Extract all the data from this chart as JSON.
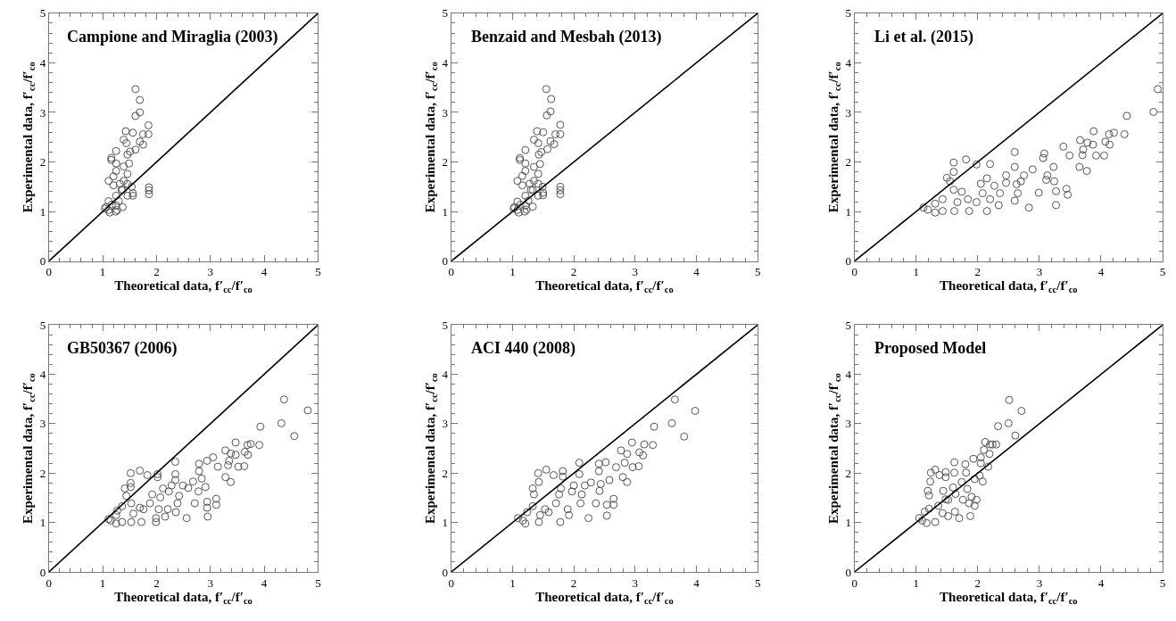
{
  "chart_data": [
    {
      "type": "scatter",
      "title": "Campione and Miraglia (2003)",
      "xlabel": "Theoretical data, f′$_{cc}$/f′$_{co}$",
      "ylabel": "Experimental data, f′$_{cc}$/f′$_{co}$",
      "xlim": [
        0,
        5
      ],
      "ylim": [
        0,
        5
      ],
      "xticks": [
        0,
        {
          "value": 0.2,
          "label": null
        },
        {
          "value": 0.4,
          "label": null
        },
        {
          "value": 0.6,
          "label": null
        },
        {
          "value": 0.8,
          "label": null
        },
        1,
        {
          "value": 1.2,
          "label": null
        },
        {
          "value": 1.4,
          "label": null
        },
        {
          "value": 1.6,
          "label": null
        },
        {
          "value": 1.8,
          "label": null
        },
        2,
        {
          "value": 2.2,
          "label": null
        },
        {
          "value": 2.4,
          "label": null
        },
        {
          "value": 2.6,
          "label": null
        },
        {
          "value": 2.8,
          "label": null
        },
        3,
        {
          "value": 3.2,
          "label": null
        },
        {
          "value": 3.4,
          "label": null
        },
        {
          "value": 3.6,
          "label": null
        },
        {
          "value": 3.8,
          "label": null
        },
        4,
        {
          "value": 4.2,
          "label": null
        },
        {
          "value": 4.4,
          "label": null
        },
        {
          "value": 4.6,
          "label": null
        },
        {
          "value": 4.8,
          "label": null
        },
        5
      ],
      "yticks": [
        0,
        {
          "value": 0.2,
          "label": null
        },
        {
          "value": 0.4,
          "label": null
        },
        {
          "value": 0.6,
          "label": null
        },
        {
          "value": 0.8,
          "label": null
        },
        1,
        {
          "value": 1.2,
          "label": null
        },
        {
          "value": 1.4,
          "label": null
        },
        {
          "value": 1.6,
          "label": null
        },
        {
          "value": 1.8,
          "label": null
        },
        2,
        {
          "value": 2.2,
          "label": null
        },
        {
          "value": 2.4,
          "label": null
        },
        {
          "value": 2.6,
          "label": null
        },
        {
          "value": 2.8,
          "label": null
        },
        3,
        {
          "value": 3.2,
          "label": null
        },
        {
          "value": 3.4,
          "label": null
        },
        {
          "value": 3.6,
          "label": null
        },
        {
          "value": 3.8,
          "label": null
        },
        4,
        {
          "value": 4.2,
          "label": null
        },
        {
          "value": 4.4,
          "label": null
        },
        {
          "value": 4.6,
          "label": null
        },
        {
          "value": 4.8,
          "label": null
        },
        5
      ],
      "marker": "circle",
      "series": [
        {
          "color": "#555555",
          "x": [
            1.61,
            1.69,
            1.69,
            1.61,
            1.85,
            1.85,
            1.75,
            1.69,
            1.75,
            1.56,
            1.43,
            1.44,
            1.39,
            1.61,
            1.51,
            1.46,
            1.25,
            1.16,
            1.16,
            1.25,
            1.25,
            1.39,
            1.46,
            1.39,
            1.2,
            1.11,
            1.2,
            1.46,
            1.35,
            1.46,
            1.56,
            1.56,
            1.3,
            1.25,
            1.11,
            1.06,
            1.04,
            1.11,
            1.13,
            1.24,
            1.27,
            1.37,
            1.37,
            1.86,
            1.86,
            1.86,
            1.25,
            1.32,
            1.17,
            1.49,
            1.54
          ],
          "values": [
            3.47,
            3.25,
            3.0,
            2.93,
            2.74,
            2.56,
            2.56,
            2.41,
            2.35,
            2.59,
            2.62,
            2.38,
            2.45,
            2.25,
            2.21,
            2.15,
            2.22,
            2.08,
            2.04,
            1.97,
            1.82,
            1.91,
            1.76,
            1.62,
            1.71,
            1.62,
            1.53,
            1.56,
            1.44,
            1.32,
            1.37,
            1.32,
            1.21,
            1.12,
            1.21,
            1.09,
            1.06,
            1.03,
            0.98,
            1.0,
            1.03,
            1.09,
            1.44,
            1.49,
            1.43,
            1.35,
            1.32,
            1.56,
            1.14,
            1.97,
            1.5
          ]
        },
        {
          "type": "line",
          "color": "#000000",
          "marker": "none",
          "x": [
            0,
            5
          ],
          "values": [
            0,
            5
          ]
        }
      ]
    },
    {
      "type": "scatter",
      "title": "Benzaid and Mesbah (2013)",
      "xlabel": "Theoretical data, f′$_{cc}$/f′$_{co}$",
      "ylabel": "Experimental data, f′$_{cc}$/f′$_{co}$",
      "xlim": [
        0,
        5
      ],
      "ylim": [
        0,
        5
      ],
      "xticks": [
        0,
        {
          "value": 0.2,
          "label": null
        },
        {
          "value": 0.4,
          "label": null
        },
        {
          "value": 0.6,
          "label": null
        },
        {
          "value": 0.8,
          "label": null
        },
        1,
        {
          "value": 1.2,
          "label": null
        },
        {
          "value": 1.4,
          "label": null
        },
        {
          "value": 1.6,
          "label": null
        },
        {
          "value": 1.8,
          "label": null
        },
        2,
        {
          "value": 2.2,
          "label": null
        },
        {
          "value": 2.4,
          "label": null
        },
        {
          "value": 2.6,
          "label": null
        },
        {
          "value": 2.8,
          "label": null
        },
        3,
        {
          "value": 3.2,
          "label": null
        },
        {
          "value": 3.4,
          "label": null
        },
        {
          "value": 3.6,
          "label": null
        },
        {
          "value": 3.8,
          "label": null
        },
        4,
        {
          "value": 4.2,
          "label": null
        },
        {
          "value": 4.4,
          "label": null
        },
        {
          "value": 4.6,
          "label": null
        },
        {
          "value": 4.8,
          "label": null
        },
        5
      ],
      "yticks": [
        0,
        {
          "value": 0.2,
          "label": null
        },
        {
          "value": 0.4,
          "label": null
        },
        {
          "value": 0.6,
          "label": null
        },
        {
          "value": 0.8,
          "label": null
        },
        1,
        {
          "value": 1.2,
          "label": null
        },
        {
          "value": 1.4,
          "label": null
        },
        {
          "value": 1.6,
          "label": null
        },
        {
          "value": 1.8,
          "label": null
        },
        2,
        {
          "value": 2.2,
          "label": null
        },
        {
          "value": 2.4,
          "label": null
        },
        {
          "value": 2.6,
          "label": null
        },
        {
          "value": 2.8,
          "label": null
        },
        3,
        {
          "value": 3.2,
          "label": null
        },
        {
          "value": 3.4,
          "label": null
        },
        {
          "value": 3.6,
          "label": null
        },
        {
          "value": 3.8,
          "label": null
        },
        4,
        {
          "value": 4.2,
          "label": null
        },
        {
          "value": 4.4,
          "label": null
        },
        {
          "value": 4.6,
          "label": null
        },
        {
          "value": 4.8,
          "label": null
        },
        5
      ],
      "marker": "circle",
      "series": [
        {
          "color": "#555555",
          "x": [
            1.55,
            1.63,
            1.62,
            1.56,
            1.78,
            1.78,
            1.7,
            1.62,
            1.68,
            1.5,
            1.4,
            1.42,
            1.35,
            1.57,
            1.47,
            1.43,
            1.21,
            1.12,
            1.12,
            1.21,
            1.21,
            1.35,
            1.42,
            1.35,
            1.16,
            1.08,
            1.16,
            1.42,
            1.3,
            1.42,
            1.5,
            1.5,
            1.26,
            1.21,
            1.08,
            1.03,
            1.02,
            1.08,
            1.1,
            1.2,
            1.23,
            1.33,
            1.33,
            1.78,
            1.78,
            1.78,
            1.21,
            1.28,
            1.13,
            1.45,
            1.49
          ],
          "values": [
            3.47,
            3.27,
            3.02,
            2.94,
            2.75,
            2.56,
            2.56,
            2.42,
            2.36,
            2.6,
            2.62,
            2.38,
            2.45,
            2.26,
            2.2,
            2.15,
            2.24,
            2.08,
            2.04,
            1.97,
            1.82,
            1.9,
            1.76,
            1.62,
            1.72,
            1.62,
            1.53,
            1.56,
            1.44,
            1.32,
            1.38,
            1.33,
            1.22,
            1.12,
            1.2,
            1.09,
            1.06,
            1.03,
            0.98,
            1.0,
            1.04,
            1.1,
            1.44,
            1.5,
            1.43,
            1.35,
            1.32,
            1.56,
            1.14,
            1.96,
            1.5
          ]
        },
        {
          "type": "line",
          "color": "#000000",
          "marker": "none",
          "x": [
            0,
            5
          ],
          "values": [
            0,
            5
          ]
        }
      ]
    },
    {
      "type": "scatter",
      "title": "Li et al. (2015)",
      "xlabel": "Theoretical data, f′$_{cc}$/f′$_{co}$",
      "ylabel": "Experimental data, f′$_{cc}$/f′$_{co}$",
      "xlim": [
        0,
        5
      ],
      "ylim": [
        0,
        5
      ],
      "xticks": [
        0,
        {
          "value": 0.2,
          "label": null
        },
        {
          "value": 0.4,
          "label": null
        },
        {
          "value": 0.6,
          "label": null
        },
        {
          "value": 0.8,
          "label": null
        },
        1,
        {
          "value": 1.2,
          "label": null
        },
        {
          "value": 1.4,
          "label": null
        },
        {
          "value": 1.6,
          "label": null
        },
        {
          "value": 1.8,
          "label": null
        },
        2,
        {
          "value": 2.2,
          "label": null
        },
        {
          "value": 2.4,
          "label": null
        },
        {
          "value": 2.6,
          "label": null
        },
        {
          "value": 2.8,
          "label": null
        },
        3,
        {
          "value": 3.2,
          "label": null
        },
        {
          "value": 3.4,
          "label": null
        },
        {
          "value": 3.6,
          "label": null
        },
        {
          "value": 3.8,
          "label": null
        },
        4,
        {
          "value": 4.2,
          "label": null
        },
        {
          "value": 4.4,
          "label": null
        },
        {
          "value": 4.6,
          "label": null
        },
        {
          "value": 4.8,
          "label": null
        },
        5
      ],
      "yticks": [
        0,
        {
          "value": 0.2,
          "label": null
        },
        {
          "value": 0.4,
          "label": null
        },
        {
          "value": 0.6,
          "label": null
        },
        {
          "value": 0.8,
          "label": null
        },
        1,
        {
          "value": 1.2,
          "label": null
        },
        {
          "value": 1.4,
          "label": null
        },
        {
          "value": 1.6,
          "label": null
        },
        {
          "value": 1.8,
          "label": null
        },
        2,
        {
          "value": 2.2,
          "label": null
        },
        {
          "value": 2.4,
          "label": null
        },
        {
          "value": 2.6,
          "label": null
        },
        {
          "value": 2.8,
          "label": null
        },
        3,
        {
          "value": 3.2,
          "label": null
        },
        {
          "value": 3.4,
          "label": null
        },
        {
          "value": 3.6,
          "label": null
        },
        {
          "value": 3.8,
          "label": null
        },
        4,
        {
          "value": 4.2,
          "label": null
        },
        {
          "value": 4.4,
          "label": null
        },
        {
          "value": 4.6,
          "label": null
        },
        {
          "value": 4.8,
          "label": null
        },
        5
      ],
      "marker": "circle",
      "series": [
        {
          "color": "#555555",
          "x": [
            1.12,
            1.19,
            1.31,
            1.31,
            1.43,
            1.43,
            1.5,
            1.55,
            1.61,
            1.61,
            1.61,
            1.62,
            1.67,
            1.74,
            1.81,
            1.84,
            1.86,
            1.98,
            1.98,
            2.05,
            2.08,
            2.15,
            2.15,
            2.2,
            2.2,
            2.27,
            2.34,
            2.36,
            2.46,
            2.46,
            2.6,
            2.6,
            2.6,
            2.63,
            2.65,
            2.7,
            2.75,
            2.83,
            2.89,
            2.99,
            3.06,
            3.08,
            3.11,
            3.13,
            3.23,
            3.24,
            3.27,
            3.27,
            3.39,
            3.44,
            3.46,
            3.49,
            3.65,
            3.66,
            3.7,
            3.71,
            3.77,
            3.78,
            3.87,
            3.88,
            3.92,
            4.05,
            4.07,
            4.13,
            4.14,
            4.21,
            4.38,
            4.42,
            4.85,
            4.92
          ],
          "values": [
            1.08,
            1.04,
            0.98,
            1.16,
            1.01,
            1.25,
            1.68,
            1.61,
            1.99,
            1.8,
            1.44,
            1.01,
            1.19,
            1.4,
            2.05,
            1.25,
            1.01,
            1.95,
            1.19,
            1.56,
            1.37,
            1.01,
            1.67,
            1.96,
            1.25,
            1.52,
            1.13,
            1.37,
            1.58,
            1.73,
            2.2,
            1.9,
            1.22,
            1.55,
            1.37,
            1.61,
            1.73,
            1.08,
            1.85,
            1.38,
            2.08,
            2.17,
            1.64,
            1.73,
            1.9,
            1.61,
            1.41,
            1.13,
            2.31,
            1.46,
            1.34,
            2.13,
            1.9,
            2.44,
            2.14,
            2.25,
            1.82,
            2.39,
            2.35,
            2.62,
            2.13,
            2.13,
            2.41,
            2.56,
            2.35,
            2.59,
            2.56,
            2.93,
            3.01,
            3.47
          ]
        },
        {
          "type": "line",
          "color": "#000000",
          "marker": "none",
          "x": [
            0,
            5
          ],
          "values": [
            0,
            5
          ]
        }
      ]
    },
    {
      "type": "scatter",
      "title": "GB50367 (2006)",
      "xlabel": "Theoretical data, f′$_{cc}$/f′$_{co}$",
      "ylabel": "Experimental data, f′$_{cc}$/f′$_{co}$",
      "xlim": [
        0,
        5
      ],
      "ylim": [
        0,
        5
      ],
      "xticks": [
        0,
        {
          "value": 0.2,
          "label": null
        },
        {
          "value": 0.4,
          "label": null
        },
        {
          "value": 0.6,
          "label": null
        },
        {
          "value": 0.8,
          "label": null
        },
        1,
        {
          "value": 1.2,
          "label": null
        },
        {
          "value": 1.4,
          "label": null
        },
        {
          "value": 1.6,
          "label": null
        },
        {
          "value": 1.8,
          "label": null
        },
        2,
        {
          "value": 2.2,
          "label": null
        },
        {
          "value": 2.4,
          "label": null
        },
        {
          "value": 2.6,
          "label": null
        },
        {
          "value": 2.8,
          "label": null
        },
        3,
        {
          "value": 3.2,
          "label": null
        },
        {
          "value": 3.4,
          "label": null
        },
        {
          "value": 3.6,
          "label": null
        },
        {
          "value": 3.8,
          "label": null
        },
        4,
        {
          "value": 4.2,
          "label": null
        },
        {
          "value": 4.4,
          "label": null
        },
        {
          "value": 4.6,
          "label": null
        },
        {
          "value": 4.8,
          "label": null
        },
        5
      ],
      "yticks": [
        0,
        {
          "value": 0.2,
          "label": null
        },
        {
          "value": 0.4,
          "label": null
        },
        {
          "value": 0.6,
          "label": null
        },
        {
          "value": 0.8,
          "label": null
        },
        1,
        {
          "value": 1.2,
          "label": null
        },
        {
          "value": 1.4,
          "label": null
        },
        {
          "value": 1.6,
          "label": null
        },
        {
          "value": 1.8,
          "label": null
        },
        2,
        {
          "value": 2.2,
          "label": null
        },
        {
          "value": 2.4,
          "label": null
        },
        {
          "value": 2.6,
          "label": null
        },
        {
          "value": 2.8,
          "label": null
        },
        3,
        {
          "value": 3.2,
          "label": null
        },
        {
          "value": 3.4,
          "label": null
        },
        {
          "value": 3.6,
          "label": null
        },
        {
          "value": 3.8,
          "label": null
        },
        4,
        {
          "value": 4.2,
          "label": null
        },
        {
          "value": 4.4,
          "label": null
        },
        {
          "value": 4.6,
          "label": null
        },
        {
          "value": 4.8,
          "label": null
        },
        5
      ],
      "marker": "circle",
      "series": [
        {
          "color": "#555555",
          "x": [
            1.11,
            1.15,
            1.25,
            1.25,
            1.27,
            1.36,
            1.36,
            1.41,
            1.44,
            1.52,
            1.52,
            1.52,
            1.53,
            1.53,
            1.57,
            1.69,
            1.69,
            1.72,
            1.76,
            1.83,
            1.88,
            1.92,
            1.99,
            1.99,
            2.02,
            2.02,
            2.04,
            2.07,
            2.12,
            2.16,
            2.21,
            2.23,
            2.28,
            2.35,
            2.35,
            2.35,
            2.36,
            2.39,
            2.42,
            2.49,
            2.56,
            2.59,
            2.68,
            2.71,
            2.78,
            2.79,
            2.79,
            2.84,
            2.91,
            2.94,
            2.94,
            2.95,
            2.94,
            3.05,
            3.11,
            3.11,
            3.14,
            3.28,
            3.28,
            3.33,
            3.35,
            3.38,
            3.38,
            3.47,
            3.47,
            3.52,
            3.63,
            3.64,
            3.7,
            3.69,
            3.75,
            3.91,
            3.93,
            4.32,
            4.37,
            4.56,
            4.81
          ],
          "values": [
            1.07,
            1.04,
            0.98,
            1.15,
            1.24,
            1.33,
            1.01,
            1.69,
            1.54,
            2.0,
            1.8,
            1.72,
            1.39,
            1.01,
            1.18,
            2.05,
            1.3,
            1.01,
            1.27,
            1.96,
            1.39,
            1.57,
            1.01,
            1.09,
            1.98,
            1.92,
            1.27,
            1.51,
            1.69,
            1.12,
            1.27,
            1.63,
            1.75,
            2.23,
            1.98,
            1.86,
            1.21,
            1.39,
            1.54,
            1.75,
            1.09,
            1.7,
            1.83,
            1.39,
            1.63,
            2.19,
            2.04,
            1.89,
            1.72,
            1.42,
            1.3,
            1.12,
            2.25,
            2.32,
            1.48,
            1.36,
            2.13,
            2.46,
            1.92,
            2.16,
            2.25,
            1.82,
            2.4,
            2.62,
            2.37,
            2.13,
            2.14,
            2.43,
            2.37,
            2.57,
            2.59,
            2.57,
            2.94,
            3.01,
            3.49,
            2.75,
            3.27
          ]
        },
        {
          "type": "line",
          "color": "#000000",
          "marker": "none",
          "x": [
            0,
            5
          ],
          "values": [
            0,
            5
          ]
        }
      ]
    },
    {
      "type": "scatter",
      "title": "ACI 440 (2008)",
      "xlabel": "Theoretical data, f′$_{cc}$/f′$_{co}$",
      "ylabel": "Experimental data, f′$_{cc}$/f′$_{co}$",
      "xlim": [
        0,
        5
      ],
      "ylim": [
        0,
        5
      ],
      "xticks": [
        0,
        {
          "value": 0.2,
          "label": null
        },
        {
          "value": 0.4,
          "label": null
        },
        {
          "value": 0.6,
          "label": null
        },
        {
          "value": 0.8,
          "label": null
        },
        1,
        {
          "value": 1.2,
          "label": null
        },
        {
          "value": 1.4,
          "label": null
        },
        {
          "value": 1.6,
          "label": null
        },
        {
          "value": 1.8,
          "label": null
        },
        2,
        {
          "value": 2.2,
          "label": null
        },
        {
          "value": 2.4,
          "label": null
        },
        {
          "value": 2.6,
          "label": null
        },
        {
          "value": 2.8,
          "label": null
        },
        3,
        {
          "value": 3.2,
          "label": null
        },
        {
          "value": 3.4,
          "label": null
        },
        {
          "value": 3.6,
          "label": null
        },
        {
          "value": 3.8,
          "label": null
        },
        4,
        {
          "value": 4.2,
          "label": null
        },
        {
          "value": 4.4,
          "label": null
        },
        {
          "value": 4.6,
          "label": null
        },
        {
          "value": 4.8,
          "label": null
        },
        5
      ],
      "yticks": [
        0,
        {
          "value": 0.2,
          "label": null
        },
        {
          "value": 0.4,
          "label": null
        },
        {
          "value": 0.6,
          "label": null
        },
        {
          "value": 0.8,
          "label": null
        },
        1,
        {
          "value": 1.2,
          "label": null
        },
        {
          "value": 1.4,
          "label": null
        },
        {
          "value": 1.6,
          "label": null
        },
        {
          "value": 1.8,
          "label": null
        },
        2,
        {
          "value": 2.2,
          "label": null
        },
        {
          "value": 2.4,
          "label": null
        },
        {
          "value": 2.6,
          "label": null
        },
        {
          "value": 2.8,
          "label": null
        },
        3,
        {
          "value": 3.2,
          "label": null
        },
        {
          "value": 3.4,
          "label": null
        },
        {
          "value": 3.6,
          "label": null
        },
        {
          "value": 3.8,
          "label": null
        },
        4,
        {
          "value": 4.2,
          "label": null
        },
        {
          "value": 4.4,
          "label": null
        },
        {
          "value": 4.6,
          "label": null
        },
        {
          "value": 4.8,
          "label": null
        },
        5
      ],
      "marker": "circle",
      "series": [
        {
          "color": "#555555",
          "x": [
            1.09,
            1.17,
            1.21,
            1.24,
            1.33,
            1.33,
            1.35,
            1.42,
            1.43,
            1.43,
            1.45,
            1.53,
            1.55,
            1.59,
            1.67,
            1.71,
            1.76,
            1.79,
            1.82,
            1.82,
            1.78,
            1.9,
            1.92,
            1.97,
            2.0,
            2.09,
            2.09,
            2.11,
            2.13,
            2.18,
            2.24,
            2.28,
            2.36,
            2.41,
            2.41,
            2.42,
            2.44,
            2.52,
            2.54,
            2.54,
            2.58,
            2.65,
            2.65,
            2.69,
            2.77,
            2.8,
            2.83,
            2.87,
            2.87,
            2.95,
            2.96,
            3.06,
            3.07,
            3.13,
            3.15,
            3.29,
            3.31,
            3.6,
            3.65,
            3.8,
            3.98
          ],
          "values": [
            1.09,
            1.04,
            0.98,
            1.21,
            1.33,
            1.69,
            1.57,
            2.0,
            1.82,
            1.01,
            1.15,
            1.27,
            2.07,
            1.21,
            1.96,
            1.39,
            1.57,
            1.69,
            2.04,
            1.93,
            1.01,
            1.27,
            1.15,
            1.63,
            1.75,
            2.21,
            1.98,
            1.39,
            1.57,
            1.75,
            1.09,
            1.81,
            1.39,
            2.19,
            2.04,
            1.64,
            1.78,
            2.22,
            1.14,
            1.36,
            1.86,
            1.48,
            1.36,
            2.12,
            2.46,
            1.92,
            2.21,
            1.82,
            2.39,
            2.62,
            2.12,
            2.14,
            2.42,
            2.36,
            2.58,
            2.57,
            2.94,
            3.01,
            3.49,
            2.74,
            3.26
          ]
        },
        {
          "type": "line",
          "color": "#000000",
          "marker": "none",
          "x": [
            0,
            5
          ],
          "values": [
            0,
            5
          ]
        }
      ]
    },
    {
      "type": "scatter",
      "title": "Proposed Model",
      "xlabel": "Theoretical data, f′$_{cc}$/f′$_{co}$",
      "ylabel": "Experimental data, f′$_{cc}$/f′$_{co}$",
      "xlim": [
        0,
        5
      ],
      "ylim": [
        0,
        5
      ],
      "xticks": [
        0,
        {
          "value": 0.2,
          "label": null
        },
        {
          "value": 0.4,
          "label": null
        },
        {
          "value": 0.6,
          "label": null
        },
        {
          "value": 0.8,
          "label": null
        },
        1,
        {
          "value": 1.2,
          "label": null
        },
        {
          "value": 1.4,
          "label": null
        },
        {
          "value": 1.6,
          "label": null
        },
        {
          "value": 1.8,
          "label": null
        },
        2,
        {
          "value": 2.2,
          "label": null
        },
        {
          "value": 2.4,
          "label": null
        },
        {
          "value": 2.6,
          "label": null
        },
        {
          "value": 2.8,
          "label": null
        },
        3,
        {
          "value": 3.2,
          "label": null
        },
        {
          "value": 3.4,
          "label": null
        },
        {
          "value": 3.6,
          "label": null
        },
        {
          "value": 3.8,
          "label": null
        },
        4,
        {
          "value": 4.2,
          "label": null
        },
        {
          "value": 4.4,
          "label": null
        },
        {
          "value": 4.6,
          "label": null
        },
        {
          "value": 4.8,
          "label": null
        },
        5
      ],
      "yticks": [
        0,
        {
          "value": 0.2,
          "label": null
        },
        {
          "value": 0.4,
          "label": null
        },
        {
          "value": 0.6,
          "label": null
        },
        {
          "value": 0.8,
          "label": null
        },
        1,
        {
          "value": 1.2,
          "label": null
        },
        {
          "value": 1.4,
          "label": null
        },
        {
          "value": 1.6,
          "label": null
        },
        {
          "value": 1.8,
          "label": null
        },
        2,
        {
          "value": 2.2,
          "label": null
        },
        {
          "value": 2.4,
          "label": null
        },
        {
          "value": 2.6,
          "label": null
        },
        {
          "value": 2.8,
          "label": null
        },
        3,
        {
          "value": 3.2,
          "label": null
        },
        {
          "value": 3.4,
          "label": null
        },
        {
          "value": 3.6,
          "label": null
        },
        {
          "value": 3.8,
          "label": null
        },
        4,
        {
          "value": 4.2,
          "label": null
        },
        {
          "value": 4.4,
          "label": null
        },
        {
          "value": 4.6,
          "label": null
        },
        {
          "value": 4.8,
          "label": null
        },
        5
      ],
      "marker": "circle",
      "series": [
        {
          "color": "#555555",
          "x": [
            1.05,
            1.1,
            1.17,
            1.14,
            1.21,
            1.19,
            1.21,
            1.23,
            1.24,
            1.31,
            1.31,
            1.36,
            1.38,
            1.43,
            1.44,
            1.48,
            1.48,
            1.48,
            1.52,
            1.52,
            1.6,
            1.62,
            1.62,
            1.63,
            1.64,
            1.7,
            1.74,
            1.76,
            1.8,
            1.81,
            1.83,
            1.86,
            1.88,
            1.9,
            1.93,
            1.95,
            1.95,
            1.98,
            2.03,
            2.05,
            2.05,
            2.08,
            2.1,
            2.12,
            2.17,
            2.19,
            2.2,
            2.24,
            2.3,
            2.33,
            2.5,
            2.51,
            2.61,
            2.71
          ],
          "values": [
            1.09,
            1.04,
            0.99,
            1.22,
            1.28,
            1.64,
            1.55,
            1.83,
            2.01,
            2.07,
            1.01,
            1.34,
            1.96,
            1.19,
            1.64,
            2.02,
            1.92,
            1.47,
            1.13,
            1.46,
            1.71,
            2.22,
            2.01,
            1.22,
            1.58,
            1.09,
            1.82,
            1.46,
            2.18,
            2.01,
            1.68,
            1.39,
            1.13,
            1.52,
            2.29,
            1.88,
            1.34,
            1.46,
            1.95,
            2.2,
            2.32,
            1.83,
            2.47,
            2.63,
            2.13,
            2.39,
            2.58,
            2.58,
            2.58,
            2.95,
            3.01,
            3.48,
            2.76,
            3.26
          ]
        },
        {
          "type": "line",
          "color": "#000000",
          "marker": "none",
          "x": [
            0,
            5
          ],
          "values": [
            0,
            5
          ]
        }
      ]
    }
  ]
}
